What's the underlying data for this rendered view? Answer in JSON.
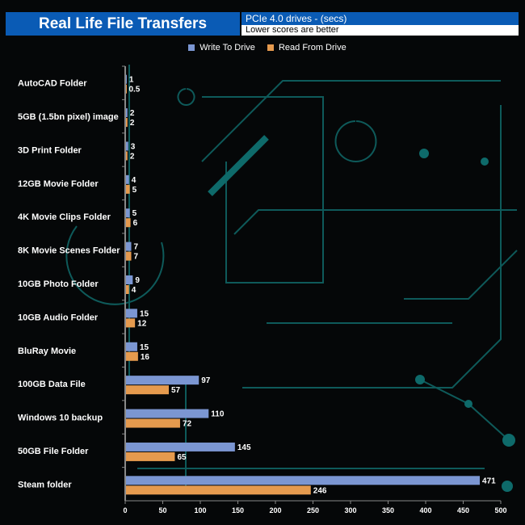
{
  "chart_data": {
    "type": "bar",
    "orientation": "horizontal",
    "title": "Real Life File Transfers",
    "subtitle": "PCIe 4.0 drives - (secs)",
    "note": "Lower scores are better",
    "categories": [
      "AutoCAD Folder",
      "5GB (1.5bn pixel) image",
      "3D Print Folder",
      "12GB Movie Folder",
      "4K Movie Clips Folder",
      "8K Movie Scenes Folder",
      "10GB Photo Folder",
      "10GB Audio Folder",
      "BluRay Movie",
      "100GB Data File",
      "Windows 10 backup",
      "50GB File Folder",
      "Steam folder"
    ],
    "series": [
      {
        "name": "Write To  Drive",
        "color": "#7b96d2",
        "values": [
          1,
          2,
          3,
          4,
          5,
          7,
          9,
          15,
          15,
          97,
          110,
          145,
          471
        ]
      },
      {
        "name": "Read From  Drive",
        "color": "#e59a4e",
        "values": [
          0.5,
          2,
          2,
          5,
          6,
          7,
          4,
          12,
          16,
          57,
          72,
          65,
          246
        ]
      }
    ],
    "xlim": [
      0,
      500
    ],
    "xticks": [
      0,
      50,
      100,
      150,
      200,
      250,
      300,
      350,
      400,
      450,
      500
    ],
    "legend": "top",
    "grid": false
  }
}
